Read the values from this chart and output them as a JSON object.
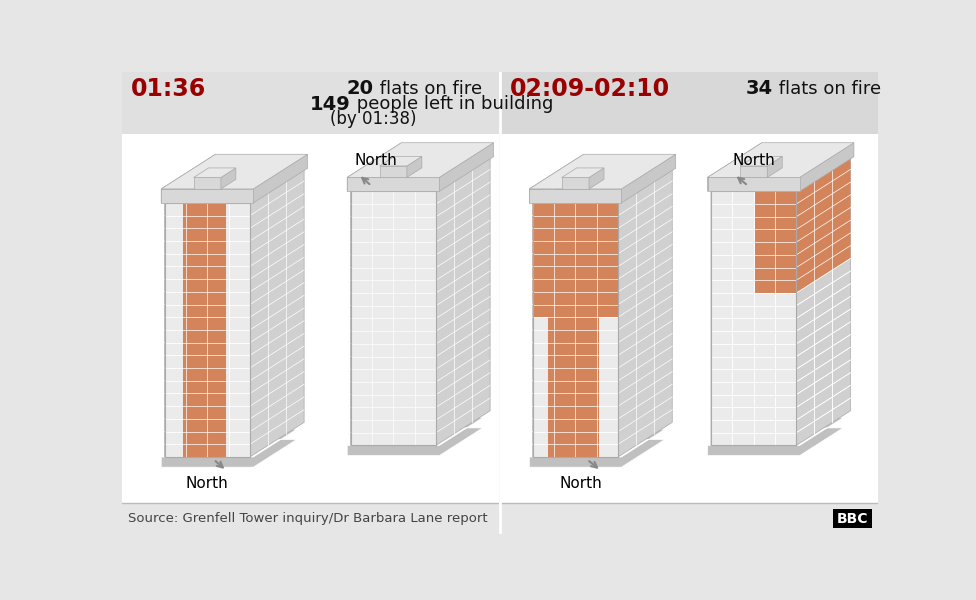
{
  "bg_color": "#e6e6e6",
  "panel_left_bg": "#e0e0e0",
  "panel_right_bg": "#d8d8d8",
  "footer_bg": "#e6e6e6",
  "divider_color": "#ffffff",
  "fire_color": "#d4845a",
  "face_front_gray": "#ebebeb",
  "face_left_gray": "#b8b8b8",
  "face_right_gray": "#d0d0d0",
  "roof_top_color": "#e8e8e8",
  "roof_front_color": "#d8d8d8",
  "roof_right_color": "#c8c8c8",
  "roof_left_color": "#b8b8b8",
  "base_color": "#c0c0c0",
  "grid_line_color": "#ffffff",
  "edge_color": "#aaaaaa",
  "time_color": "#990000",
  "text_dark": "#111111",
  "text_source": "#444444",
  "time1": "01:36",
  "time2": "02:09-02:10",
  "flats1_bold": "20",
  "flats1_normal": " flats on fire",
  "people_bold": "149",
  "people_normal": " people left in building",
  "by_text": "(by 01:38)",
  "flats2_bold": "34",
  "flats2_normal": " flats on fire",
  "north_label": "North",
  "source_text": "Source: Grenfell Tower inquiry/Dr Barbara Lane report",
  "bbc_text": "BBC",
  "n_floors": 20,
  "n_vcols_front": 3,
  "n_vcols_side": 2
}
